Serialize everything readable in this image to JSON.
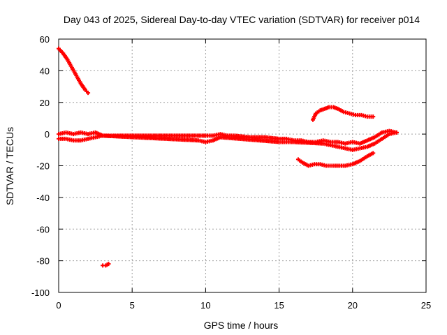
{
  "chart_data": {
    "type": "scatter",
    "title": "Day 043 of 2025, Sidereal Day-to-day VTEC variation (SDTVAR) for receiver p014",
    "xlabel": "GPS time / hours",
    "ylabel": "SDTVAR / TECUs",
    "xlim": [
      0,
      25
    ],
    "ylim": [
      -100,
      60
    ],
    "xticks": [
      "0",
      "5",
      "10",
      "15",
      "20",
      "25"
    ],
    "yticks": [
      "60",
      "40",
      "20",
      "0",
      "-20",
      "-40",
      "-60",
      "-80",
      "-100"
    ],
    "grid": true,
    "marker": "+",
    "series_color": "#ff0000",
    "series": [
      {
        "name": "descending-arc-early",
        "x": [
          0,
          0.3,
          0.6,
          0.9,
          1.2,
          1.5,
          1.8,
          2.0
        ],
        "y": [
          54,
          51,
          47,
          42,
          37,
          32,
          28,
          26
        ]
      },
      {
        "name": "near-zero-upper",
        "x": [
          0,
          0.5,
          1,
          1.5,
          2,
          2.5,
          3,
          3.5,
          4,
          5,
          6,
          7,
          8,
          9,
          10,
          10.5,
          11,
          11.5,
          12,
          13,
          14,
          15,
          15.5,
          16,
          16.5,
          17,
          17.5,
          18,
          18.5,
          19,
          19.5,
          20,
          20.5,
          21,
          21.5,
          22,
          22.5,
          23
        ],
        "y": [
          0,
          1,
          0,
          1,
          0,
          1,
          -1,
          -1,
          -1,
          -1,
          -1,
          -1,
          -1,
          -1,
          -1,
          -1,
          0,
          -1,
          -1,
          -2,
          -2,
          -3,
          -3,
          -4,
          -4,
          -5,
          -5,
          -4,
          -5,
          -5,
          -6,
          -5,
          -6,
          -4,
          -2,
          1,
          2,
          1
        ]
      },
      {
        "name": "near-zero-lower",
        "x": [
          0,
          0.5,
          1,
          1.5,
          2,
          2.5,
          3,
          9.5,
          10,
          10.5,
          11,
          15,
          15.5,
          16,
          18,
          18.5,
          19,
          19.5,
          20,
          20.5,
          21,
          21.5,
          22,
          22.5,
          23
        ],
        "y": [
          -3,
          -3,
          -4,
          -4,
          -3,
          -2,
          -1,
          -4,
          -5,
          -4,
          -2,
          -5,
          -5,
          -5,
          -6,
          -7,
          -8,
          -9,
          -10,
          -9,
          -8,
          -6,
          -3,
          0,
          1
        ]
      },
      {
        "name": "upper-arc-late",
        "x": [
          17.3,
          17.5,
          17.8,
          18.1,
          18.4,
          18.7,
          19.0,
          19.4,
          19.8,
          20.2,
          20.6,
          21.0,
          21.4
        ],
        "y": [
          9,
          13,
          15,
          16,
          17,
          17,
          16,
          14,
          13,
          12,
          12,
          11,
          11
        ]
      },
      {
        "name": "lower-arc-late",
        "x": [
          16.3,
          16.6,
          17.0,
          17.4,
          17.8,
          18.2,
          18.6,
          19.0,
          19.5,
          20.0,
          20.5,
          21.0,
          21.4
        ],
        "y": [
          -16,
          -18,
          -20,
          -19,
          -19,
          -20,
          -20,
          -20,
          -20,
          -19,
          -17,
          -14,
          -12
        ]
      },
      {
        "name": "outlier-cluster",
        "x": [
          3.0,
          3.2,
          3.4
        ],
        "y": [
          -83,
          -83,
          -82
        ]
      }
    ]
  }
}
